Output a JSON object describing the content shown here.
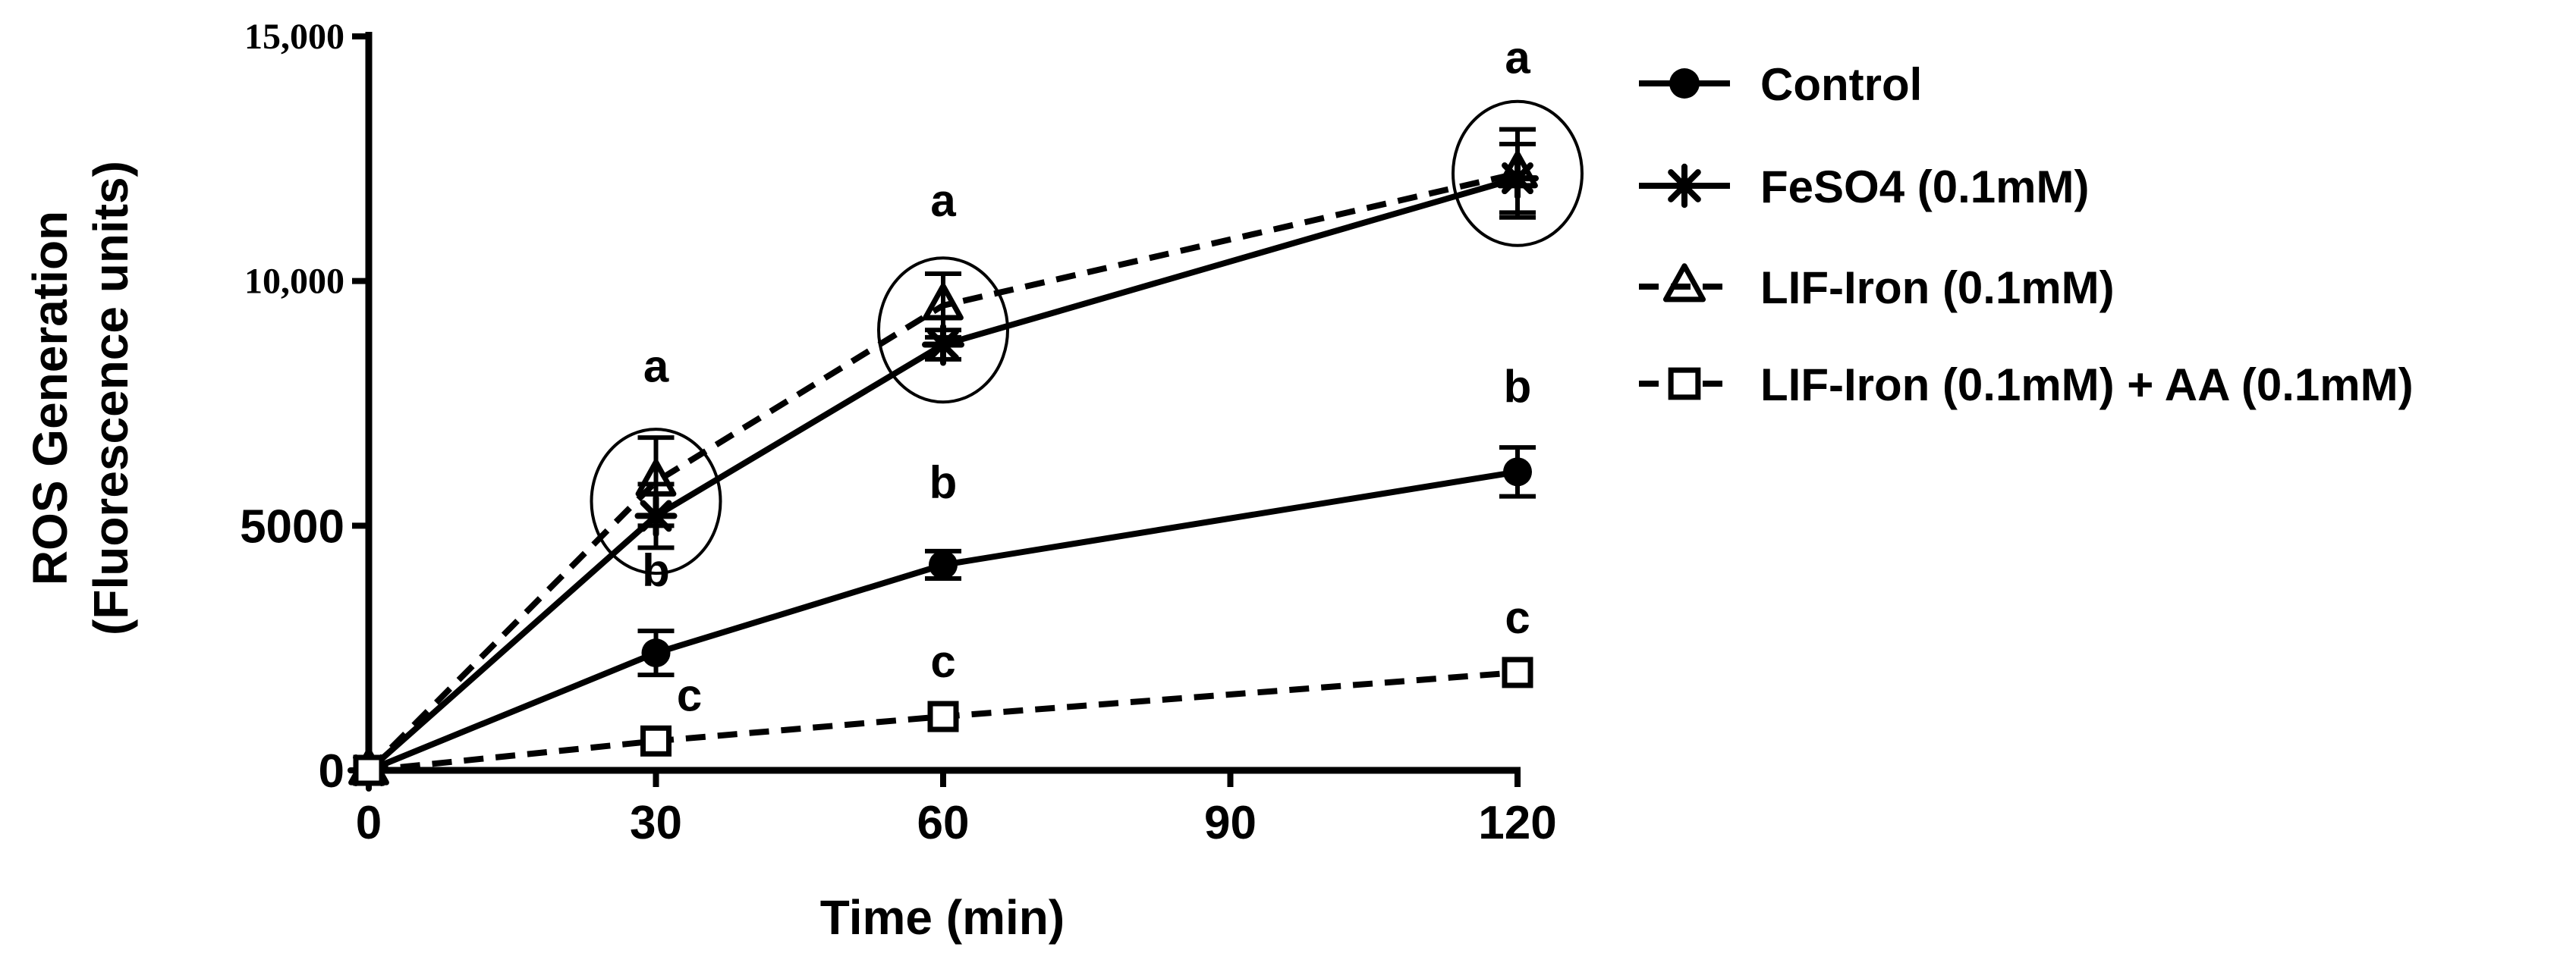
{
  "chart_data": {
    "type": "line",
    "xlabel": "Time (min)",
    "ylabel_line1": "ROS Generation",
    "ylabel_line2": "(Fluorescence units)",
    "xlim": [
      0,
      120
    ],
    "ylim": [
      0,
      15000
    ],
    "x_ticks": [
      0,
      30,
      60,
      90,
      120
    ],
    "x_tick_labels": [
      "0",
      "30",
      "60",
      "90",
      "120"
    ],
    "y_ticks": [
      0,
      5000,
      10000,
      15000
    ],
    "y_tick_labels": [
      "0",
      "5000",
      "10,000",
      "15,000"
    ],
    "grid": false,
    "legend_position": "right",
    "x": [
      0,
      30,
      60,
      120
    ],
    "series": [
      {
        "name": "Control",
        "marker": "filled-circle",
        "line": "solid",
        "values": [
          0,
          2400,
          4200,
          6100
        ],
        "errors": [
          0,
          450,
          280,
          500
        ],
        "labels": [
          "",
          "b",
          "b",
          "b"
        ]
      },
      {
        "name": "FeSO4 (0.1mM)",
        "marker": "asterisk",
        "line": "solid",
        "values": [
          0,
          5200,
          8700,
          12100
        ],
        "errors": [
          0,
          650,
          300,
          700
        ],
        "labels": [
          "",
          "",
          "",
          ""
        ]
      },
      {
        "name": "LIF-Iron (0.1mM)",
        "marker": "open-triangle",
        "line": "dashed",
        "values": [
          0,
          5900,
          9500,
          12200
        ],
        "errors": [
          0,
          900,
          650,
          900
        ],
        "labels": [
          "",
          "a",
          "a",
          "a"
        ]
      },
      {
        "name": "LIF-Iron (0.1mM) + AA (0.1mM)",
        "marker": "open-square",
        "line": "dashed",
        "values": [
          0,
          600,
          1100,
          2000
        ],
        "errors": [
          0,
          0,
          0,
          0
        ],
        "labels": [
          "",
          "c",
          "c",
          "c"
        ]
      }
    ],
    "annotations": [
      {
        "type": "ellipse",
        "x": 30,
        "y": 5500
      },
      {
        "type": "ellipse",
        "x": 60,
        "y": 9000
      },
      {
        "type": "ellipse",
        "x": 120,
        "y": 12200
      }
    ],
    "color": "#000000"
  }
}
